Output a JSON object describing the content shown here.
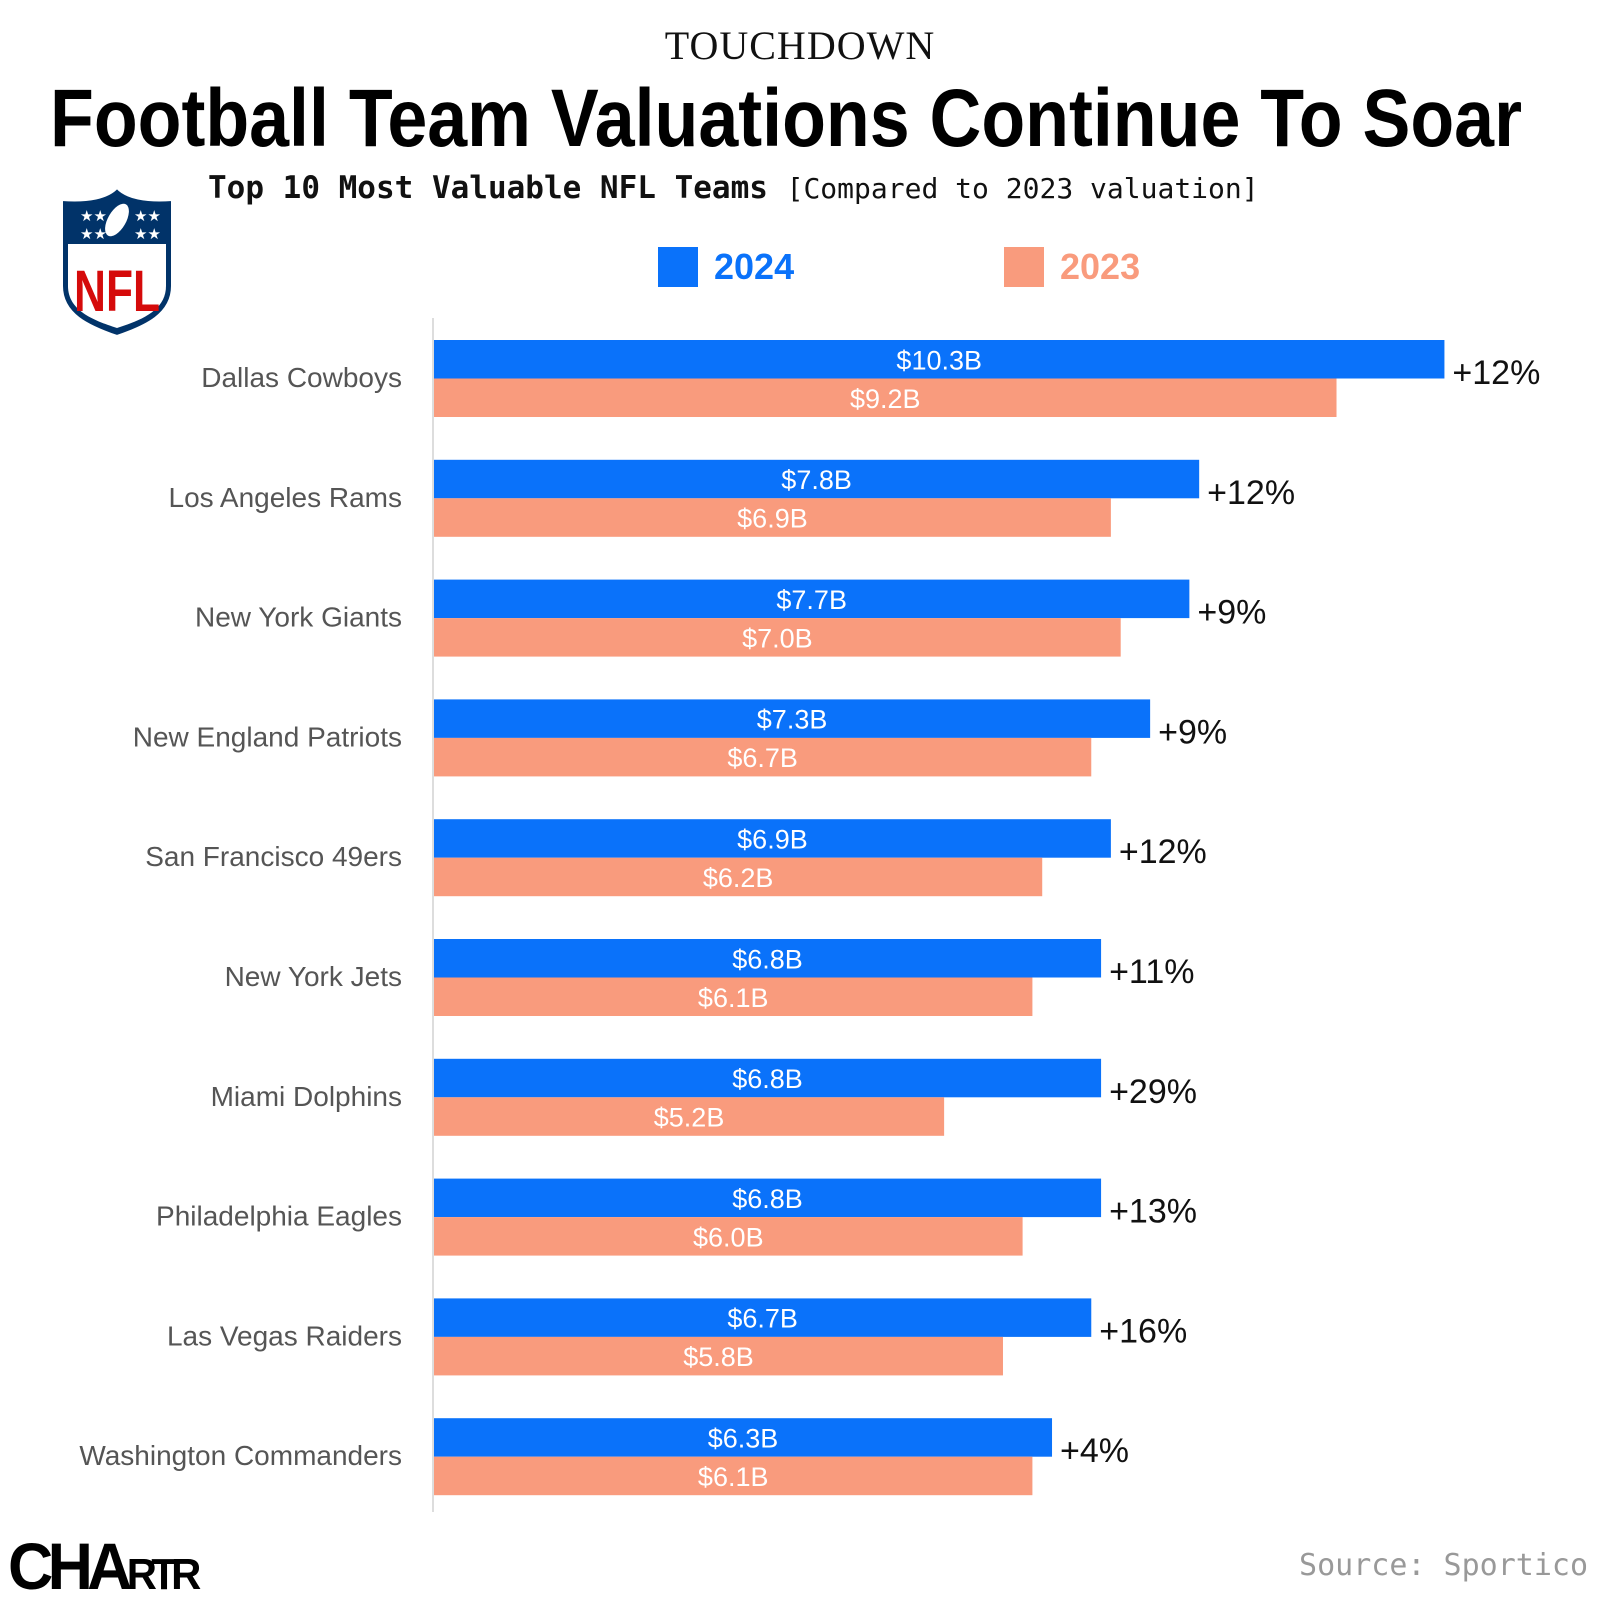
{
  "header": {
    "kicker": "TOUCHDOWN",
    "title": "Football Team Valuations Continue To Soar",
    "subtitle": "Top 10 Most Valuable NFL Teams",
    "subtitle_note": "[Compared to 2023 valuation]"
  },
  "logos": {
    "nfl": "NFL",
    "brand": "CHARTR"
  },
  "footer": {
    "source": "Source: Sportico"
  },
  "chart_data": {
    "type": "bar",
    "orientation": "horizontal",
    "title": "Top 10 Most Valuable NFL Teams",
    "categories": [
      "Dallas Cowboys",
      "Los Angeles Rams",
      "New York Giants",
      "New England Patriots",
      "San Francisco 49ers",
      "New York Jets",
      "Miami Dolphins",
      "Philadelphia Eagles",
      "Las Vegas Raiders",
      "Washington Commanders"
    ],
    "series": [
      {
        "name": "2024",
        "color": "#0a72fa",
        "values": [
          10.3,
          7.8,
          7.7,
          7.3,
          6.9,
          6.8,
          6.8,
          6.8,
          6.7,
          6.3
        ],
        "labels": [
          "$10.3B",
          "$7.8B",
          "$7.7B",
          "$7.3B",
          "$6.9B",
          "$6.8B",
          "$6.8B",
          "$6.8B",
          "$6.7B",
          "$6.3B"
        ]
      },
      {
        "name": "2023",
        "color": "#f99b7d",
        "values": [
          9.2,
          6.9,
          7.0,
          6.7,
          6.2,
          6.1,
          5.2,
          6.0,
          5.8,
          6.1
        ],
        "labels": [
          "$9.2B",
          "$6.9B",
          "$7.0B",
          "$6.7B",
          "$6.2B",
          "$6.1B",
          "$5.2B",
          "$6.0B",
          "$5.8B",
          "$6.1B"
        ]
      }
    ],
    "change_labels": [
      "+12%",
      "+12%",
      "+9%",
      "+9%",
      "+12%",
      "+11%",
      "+29%",
      "+13%",
      "+16%",
      "+4%"
    ],
    "unit": "$B",
    "legend": "top",
    "grid": false
  }
}
